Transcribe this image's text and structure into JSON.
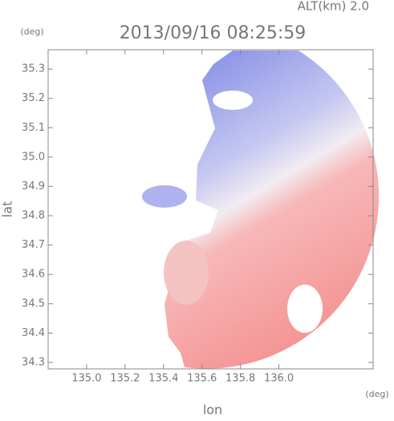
{
  "chart_data": {
    "type": "radar-map",
    "title": "2013/09/16 08:25:59",
    "subtitle": "ALT(km) 2.0",
    "x_label": "lon",
    "x_unit": "(deg)",
    "y_label": "lat",
    "y_unit": "(deg)",
    "xlim": [
      134.8,
      136.49
    ],
    "ylim": [
      34.278,
      35.366
    ],
    "xticks": [
      {
        "value": 135.0,
        "label": "135.0"
      },
      135.2,
      135.4,
      135.6,
      135.8,
      {
        "value": 136.0,
        "label": "136.0"
      }
    ],
    "yticks": [
      34.3,
      34.4,
      34.5,
      34.6,
      34.7,
      34.8,
      34.9,
      {
        "value": 35.0,
        "label": "35.0"
      },
      35.1,
      35.2,
      35.3
    ]
  }
}
